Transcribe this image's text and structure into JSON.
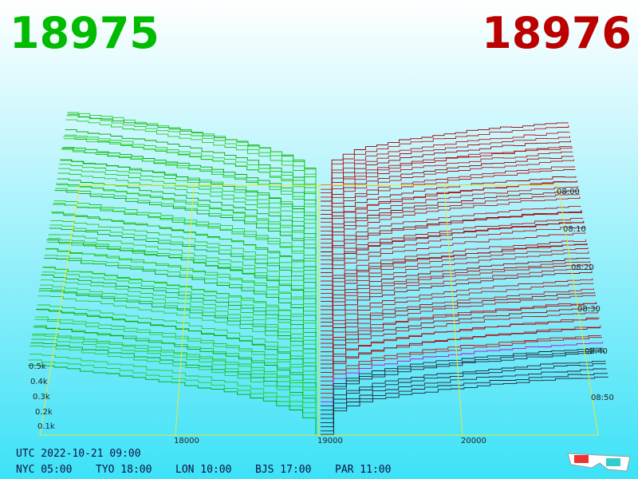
{
  "bid_price": "18975",
  "ask_price": "18976",
  "price_axis": [
    "18000",
    "19000",
    "20000"
  ],
  "volume_axis": [
    "0.5k",
    "0.4k",
    "0.3k",
    "0.2k",
    "0.1k"
  ],
  "time_axis": [
    "08:00",
    "08:10",
    "08:20",
    "08:30",
    "08:40",
    "08:50"
  ],
  "footer": {
    "utc": "UTC 2022-10-21 09:00",
    "clocks": [
      "NYC 05:00",
      "TYO 18:00",
      "LON 10:00",
      "BJS 17:00",
      "PAR 11:00"
    ]
  }
}
